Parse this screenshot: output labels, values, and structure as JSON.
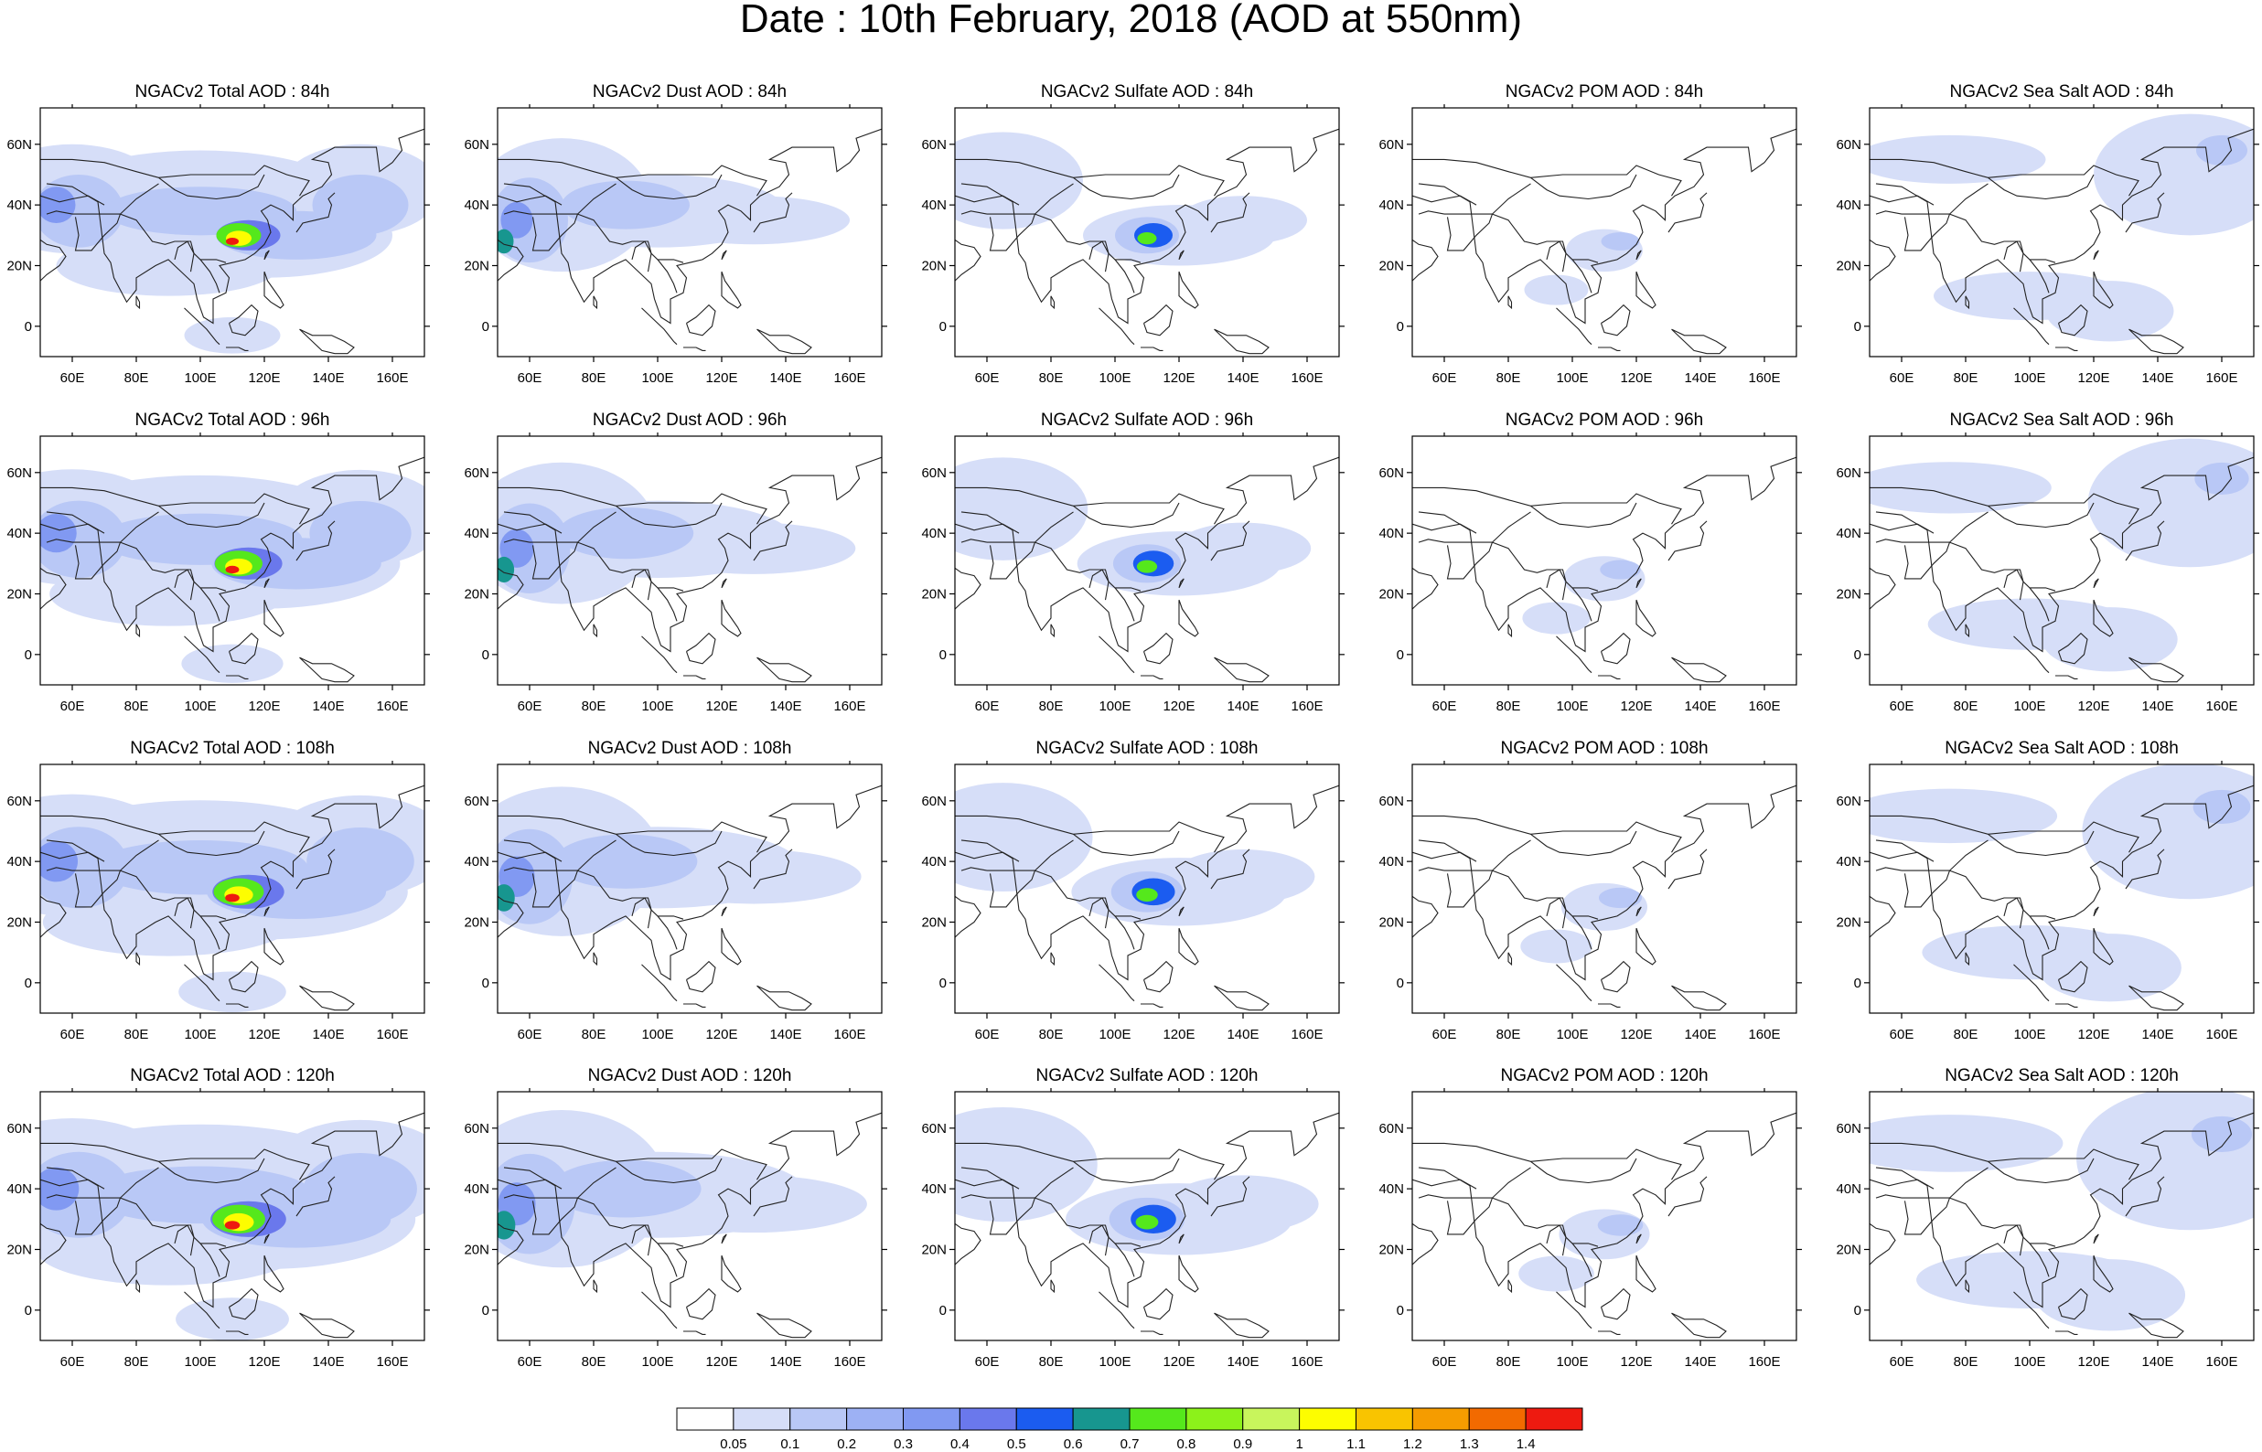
{
  "title": "Date : 10th February, 2018 (AOD at 550nm)",
  "rows": [
    [
      "NGACv2 Total AOD : 84h",
      "NGACv2 Dust AOD : 84h",
      "NGACv2 Sulfate AOD : 84h",
      "NGACv2 POM AOD : 84h",
      "NGACv2 Sea Salt AOD : 84h"
    ],
    [
      "NGACv2 Total AOD : 96h",
      "NGACv2 Dust AOD : 96h",
      "NGACv2 Sulfate AOD : 96h",
      "NGACv2 POM AOD : 96h",
      "NGACv2 Sea Salt AOD : 96h"
    ],
    [
      "NGACv2 Total AOD : 108h",
      "NGACv2 Dust AOD : 108h",
      "NGACv2 Sulfate AOD : 108h",
      "NGACv2 POM AOD : 108h",
      "NGACv2 Sea Salt AOD : 108h"
    ],
    [
      "NGACv2 Total AOD : 120h",
      "NGACv2 Dust AOD : 120h",
      "NGACv2 Sulfate AOD : 120h",
      "NGACv2 POM AOD : 120h",
      "NGACv2 Sea Salt  AOD : 120h"
    ]
  ],
  "lon_ticks": [
    "60E",
    "80E",
    "100E",
    "120E",
    "140E",
    "160E"
  ],
  "lat_ticks": [
    "60N",
    "40N",
    "20N",
    "0"
  ],
  "colorbar": {
    "labels": [
      "0.05",
      "0.1",
      "0.2",
      "0.3",
      "0.4",
      "0.5",
      "0.6",
      "0.7",
      "0.8",
      "0.9",
      "1",
      "1.1",
      "1.2",
      "1.3",
      "1.4"
    ],
    "colors": [
      "#ffffff",
      "#d6def8",
      "#b9c8f6",
      "#9db1f4",
      "#8199f2",
      "#6a78ec",
      "#1b5cf0",
      "#17968f",
      "#55e81c",
      "#8cf21a",
      "#c8f55c",
      "#fdfd00",
      "#f9c400",
      "#f59c00",
      "#f26a00",
      "#ee1a10"
    ]
  }
}
